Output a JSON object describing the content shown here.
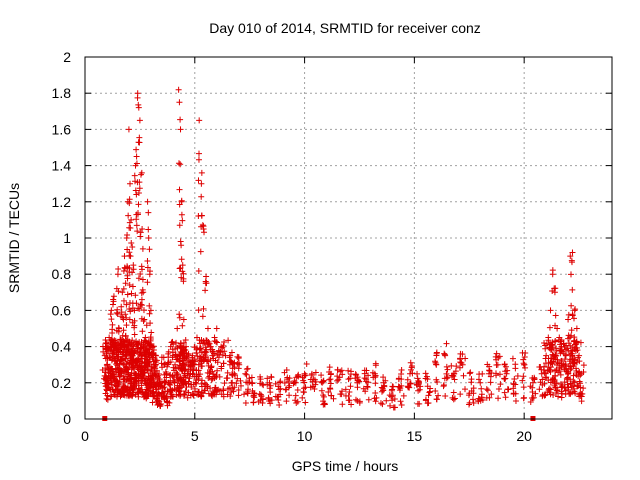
{
  "chart_data": {
    "type": "scatter",
    "title": "Day 010 of 2014, SRMTID for receiver conz",
    "xlabel": "GPS time / hours",
    "ylabel": "SRMTID / TECUs",
    "xlim": [
      0,
      24
    ],
    "ylim": [
      0,
      2
    ],
    "xticks": [
      0,
      5,
      10,
      15,
      20
    ],
    "xtick_labels": [
      "0",
      "5",
      "10",
      "15",
      "20"
    ],
    "yticks": [
      0,
      0.2,
      0.4,
      0.6,
      0.8,
      1,
      1.2,
      1.4,
      1.6,
      1.8,
      2
    ],
    "ytick_labels": [
      "0",
      "0.2",
      "0.4",
      "0.6",
      "0.8",
      "1",
      "1.2",
      "1.4",
      "1.6",
      "1.8",
      "2"
    ],
    "grid": true,
    "marker_color": "#dd0000",
    "series": [
      {
        "name": "SRMTID",
        "marker": "plus",
        "note": "approximately 1800 points, dense cloud, main activity 0.1-0.4 TECU; spikes near 2.5-5.5 h and 21-22.5 h",
        "x": [
          0.9,
          0.95,
          1.0,
          1.05,
          1.1,
          1.2,
          1.25,
          1.3,
          1.35,
          1.4,
          1.45,
          1.5,
          1.55,
          1.6,
          1.65,
          1.7,
          1.75,
          1.8,
          1.85,
          1.9,
          1.95,
          2.0,
          2.05,
          2.1,
          2.15,
          2.2,
          2.25,
          2.3,
          2.35,
          2.4,
          2.45,
          2.5,
          2.55,
          2.6,
          2.65,
          2.7,
          2.75,
          2.8,
          2.85,
          2.9,
          2.95,
          3.0,
          3.05,
          3.1,
          3.15,
          3.2,
          3.3,
          3.4,
          3.5,
          3.6,
          3.7,
          3.8,
          3.9,
          4.0,
          4.1,
          4.2,
          4.3,
          4.35,
          4.4,
          4.45,
          4.5,
          4.6,
          4.7,
          4.8,
          4.9,
          5.0,
          5.1,
          5.2,
          5.3,
          5.4,
          5.5,
          5.6,
          5.7,
          5.8,
          5.9,
          6.0,
          6.2,
          6.4,
          6.6,
          6.8,
          7.0,
          7.3,
          7.6,
          8.0,
          8.4,
          8.8,
          9.2,
          9.6,
          10.0,
          10.4,
          10.8,
          11.2,
          11.6,
          12.0,
          12.4,
          12.8,
          13.2,
          13.6,
          14.0,
          14.4,
          14.8,
          15.2,
          15.6,
          16.0,
          16.4,
          16.8,
          17.2,
          17.6,
          18.0,
          18.4,
          18.8,
          19.2,
          19.6,
          20.0,
          20.4,
          20.8,
          21.0,
          21.1,
          21.2,
          21.3,
          21.4,
          21.5,
          21.6,
          21.7,
          21.8,
          21.9,
          22.0,
          22.1,
          22.2,
          22.3,
          22.4,
          22.5,
          22.6
        ],
        "y": [
          0.35,
          0.42,
          0.3,
          0.28,
          0.45,
          0.6,
          0.52,
          0.65,
          0.4,
          0.38,
          0.72,
          0.8,
          0.5,
          0.44,
          0.62,
          0.7,
          0.55,
          0.9,
          0.75,
          1.0,
          1.2,
          1.6,
          1.3,
          1.1,
          0.95,
          0.85,
          0.6,
          1.4,
          1.45,
          1.8,
          1.72,
          1.65,
          1.35,
          1.05,
          0.7,
          0.55,
          0.45,
          0.3,
          1.2,
          1.0,
          0.8,
          0.6,
          0.4,
          0.35,
          0.3,
          0.25,
          0.2,
          0.22,
          0.18,
          0.3,
          0.25,
          0.2,
          0.4,
          0.35,
          0.3,
          0.5,
          1.75,
          1.6,
          1.2,
          0.85,
          0.55,
          0.4,
          0.3,
          0.25,
          0.35,
          0.3,
          0.45,
          1.65,
          1.3,
          1.05,
          0.75,
          0.5,
          0.4,
          0.35,
          0.45,
          0.5,
          0.4,
          0.35,
          0.3,
          0.25,
          0.28,
          0.25,
          0.2,
          0.22,
          0.2,
          0.18,
          0.22,
          0.2,
          0.25,
          0.22,
          0.2,
          0.25,
          0.23,
          0.22,
          0.2,
          0.22,
          0.25,
          0.2,
          0.18,
          0.22,
          0.25,
          0.2,
          0.22,
          0.3,
          0.35,
          0.25,
          0.3,
          0.22,
          0.2,
          0.25,
          0.3,
          0.25,
          0.28,
          0.3,
          0.2,
          0.25,
          0.35,
          0.45,
          0.6,
          0.8,
          0.7,
          0.5,
          0.45,
          0.4,
          0.3,
          0.35,
          0.55,
          0.9,
          0.92,
          0.6,
          0.5,
          0.35,
          0.25
        ]
      }
    ],
    "extra_markers": [
      {
        "x": 0.9,
        "y": 0.0,
        "shape": "square"
      },
      {
        "x": 20.4,
        "y": 0.0,
        "shape": "square"
      }
    ]
  }
}
